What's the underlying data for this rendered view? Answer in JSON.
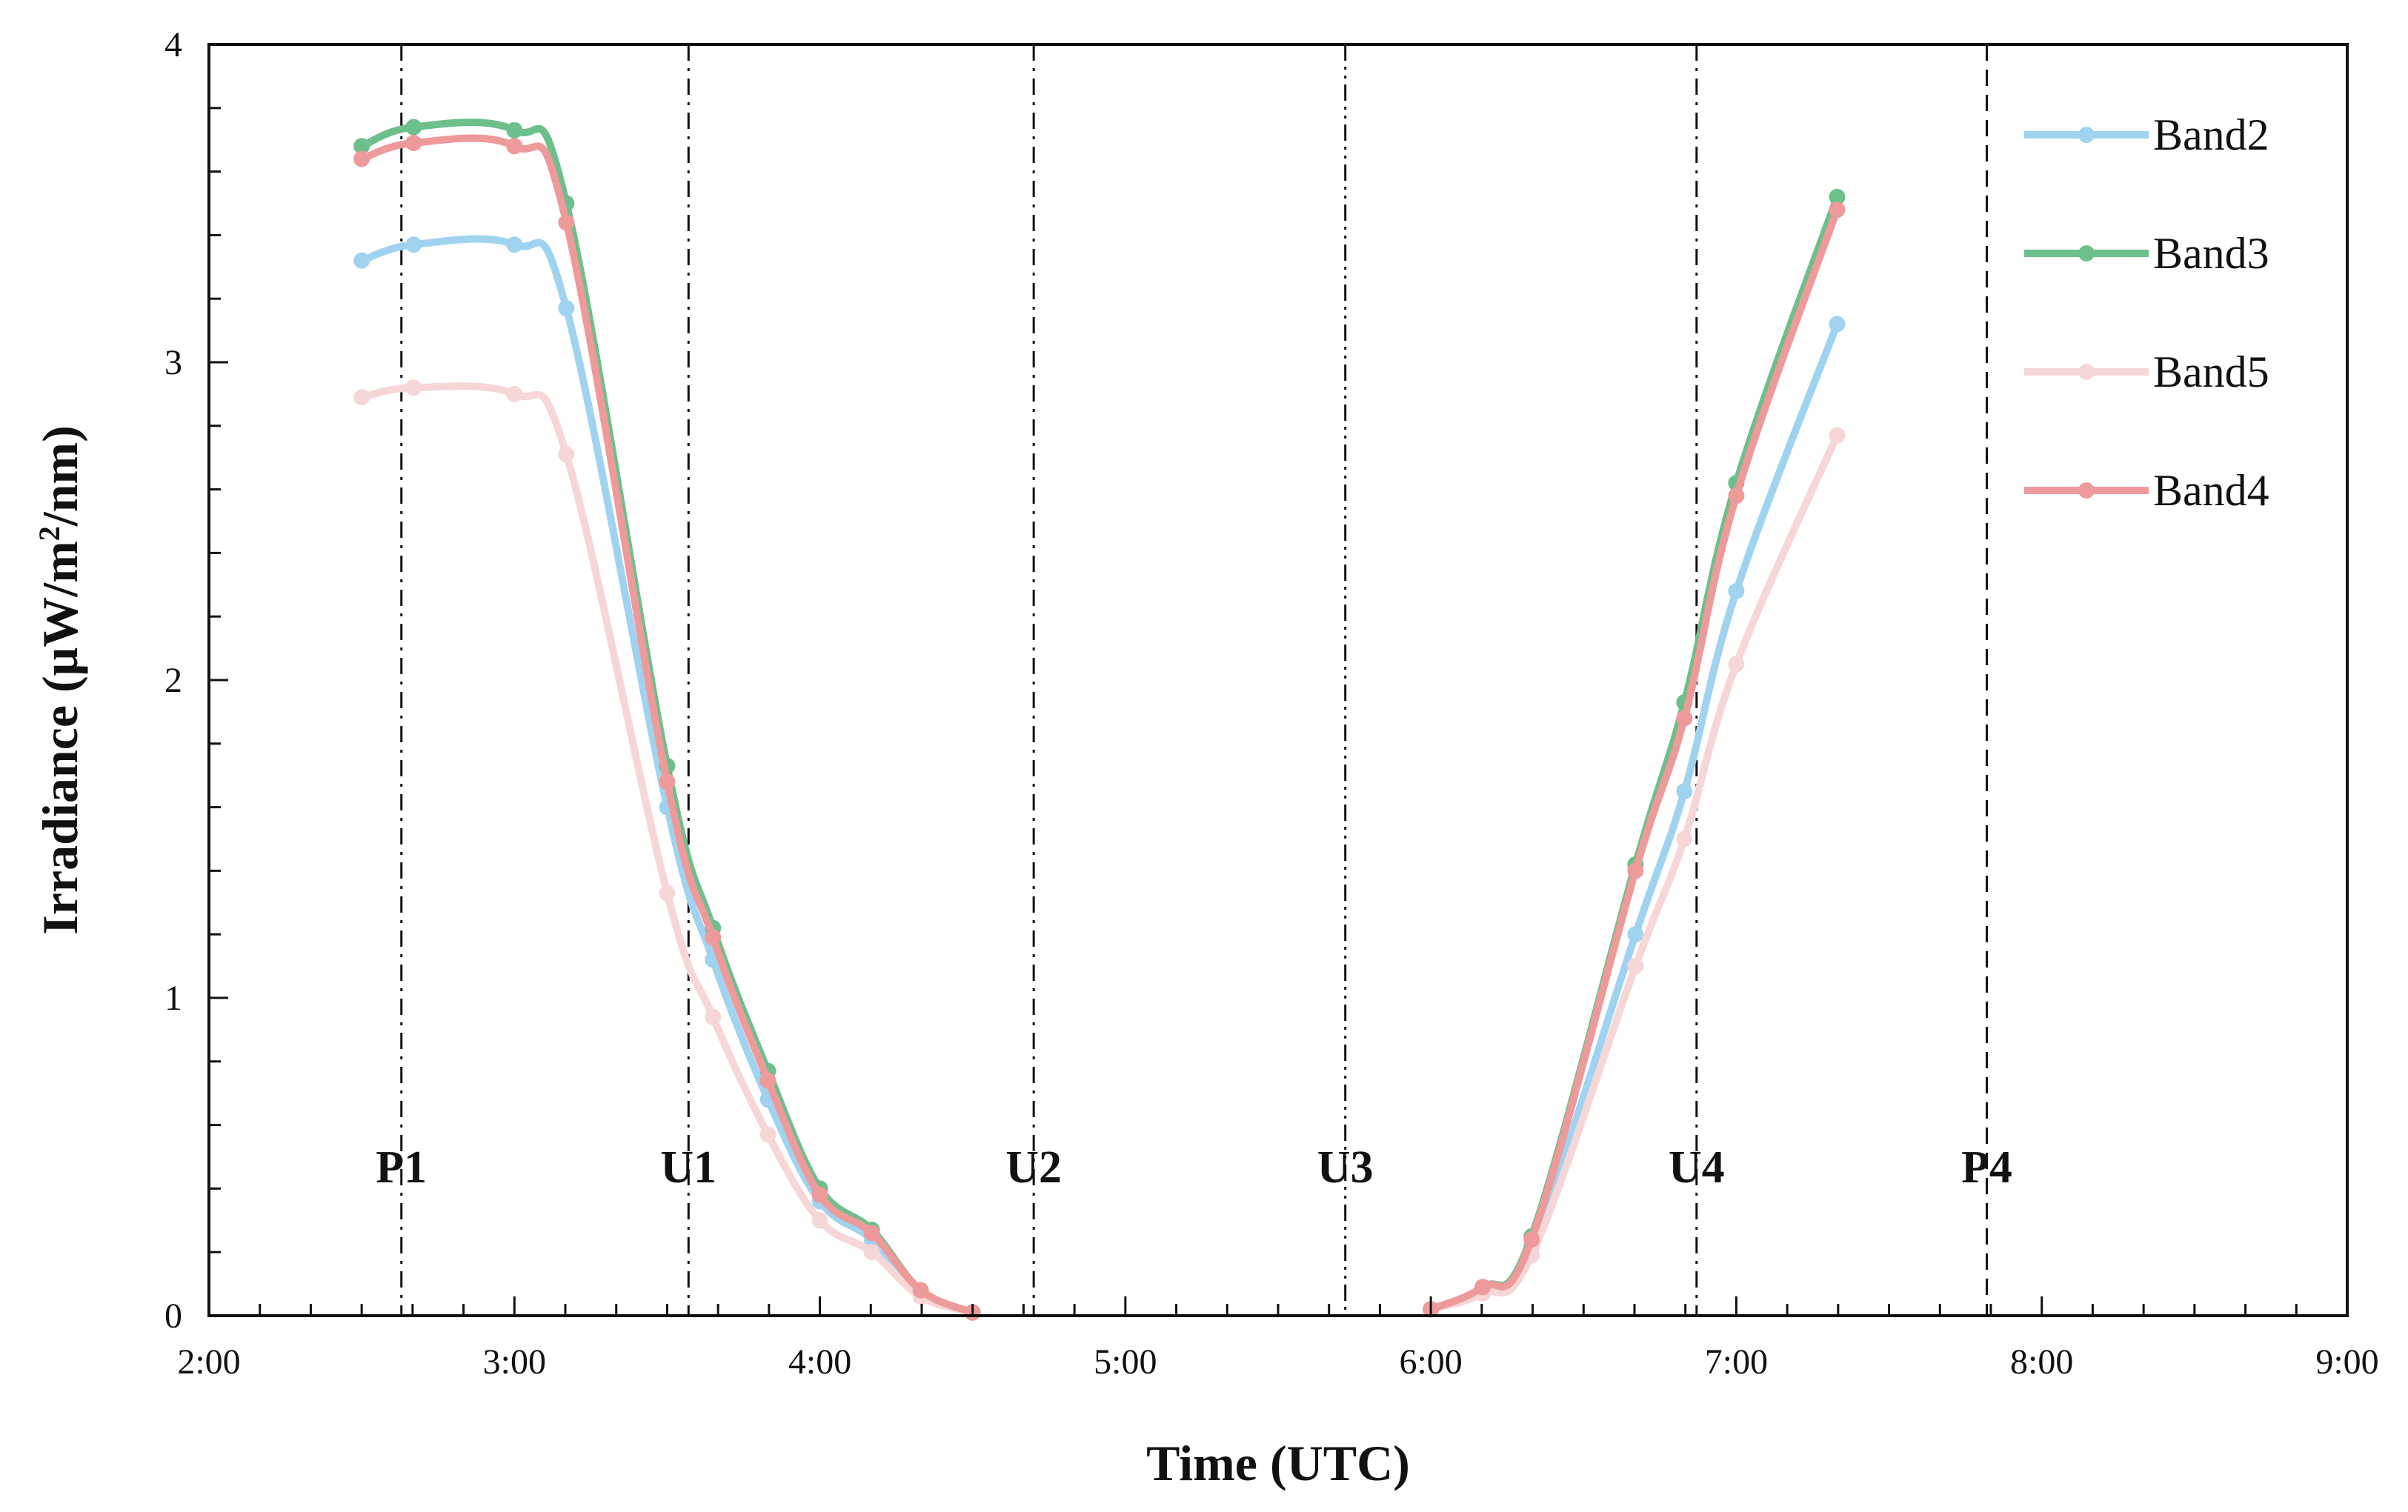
{
  "chart_data": {
    "type": "line",
    "title": "",
    "xlabel": "Time (UTC)",
    "ylabel_main": "Irradiance  (μW/m",
    "ylabel_sup": "2",
    "ylabel_end": "/nm)",
    "xlim": [
      2,
      9
    ],
    "ylim": [
      0,
      4
    ],
    "x_ticks": [
      2,
      3,
      4,
      5,
      6,
      7,
      8,
      9
    ],
    "x_tick_labels": [
      "2:00",
      "3:00",
      "4:00",
      "5:00",
      "6:00",
      "7:00",
      "8:00",
      "9:00"
    ],
    "y_ticks": [
      0,
      1,
      2,
      3,
      4
    ],
    "y_tick_labels": [
      "0",
      "1",
      "2",
      "3",
      "4"
    ],
    "legend_position": "top-right",
    "phase_lines": [
      {
        "label": "P1",
        "x": 2.63,
        "style": "dash-dot"
      },
      {
        "label": "U1",
        "x": 3.57,
        "style": "dash-dot"
      },
      {
        "label": "U2",
        "x": 4.7,
        "style": "dash-dot"
      },
      {
        "label": "U3",
        "x": 5.72,
        "style": "dash-dot-dot"
      },
      {
        "label": "U4",
        "x": 6.87,
        "style": "dash-dot"
      },
      {
        "label": "P4",
        "x": 7.82,
        "style": "dash"
      }
    ],
    "series": [
      {
        "name": "Band2",
        "color": "#9fd3f0",
        "segments": [
          [
            [
              2.5,
              3.32
            ],
            [
              2.67,
              3.37
            ],
            [
              3.0,
              3.37
            ],
            [
              3.17,
              3.17
            ],
            [
              3.5,
              1.6
            ],
            [
              3.65,
              1.12
            ],
            [
              3.83,
              0.68
            ],
            [
              4.0,
              0.36
            ],
            [
              4.17,
              0.24
            ],
            [
              4.33,
              0.07
            ],
            [
              4.5,
              0.01
            ]
          ],
          [
            [
              6.0,
              0.02
            ],
            [
              6.17,
              0.08
            ],
            [
              6.33,
              0.22
            ],
            [
              6.67,
              1.2
            ],
            [
              6.83,
              1.65
            ],
            [
              7.0,
              2.28
            ],
            [
              7.33,
              3.12
            ]
          ]
        ]
      },
      {
        "name": "Band3",
        "color": "#6dbf8b",
        "segments": [
          [
            [
              2.5,
              3.68
            ],
            [
              2.67,
              3.74
            ],
            [
              3.0,
              3.73
            ],
            [
              3.17,
              3.5
            ],
            [
              3.5,
              1.73
            ],
            [
              3.65,
              1.22
            ],
            [
              3.83,
              0.77
            ],
            [
              4.0,
              0.4
            ],
            [
              4.17,
              0.27
            ],
            [
              4.33,
              0.08
            ],
            [
              4.5,
              0.01
            ]
          ],
          [
            [
              6.0,
              0.02
            ],
            [
              6.17,
              0.09
            ],
            [
              6.33,
              0.25
            ],
            [
              6.67,
              1.42
            ],
            [
              6.83,
              1.93
            ],
            [
              7.0,
              2.62
            ],
            [
              7.33,
              3.52
            ]
          ]
        ]
      },
      {
        "name": "Band5",
        "color": "#f6d6d6",
        "segments": [
          [
            [
              2.5,
              2.89
            ],
            [
              2.67,
              2.92
            ],
            [
              3.0,
              2.9
            ],
            [
              3.17,
              2.71
            ],
            [
              3.5,
              1.33
            ],
            [
              3.65,
              0.94
            ],
            [
              3.83,
              0.57
            ],
            [
              4.0,
              0.3
            ],
            [
              4.17,
              0.2
            ],
            [
              4.33,
              0.06
            ],
            [
              4.5,
              0.01
            ]
          ],
          [
            [
              6.0,
              0.02
            ],
            [
              6.17,
              0.07
            ],
            [
              6.33,
              0.19
            ],
            [
              6.67,
              1.1
            ],
            [
              6.83,
              1.5
            ],
            [
              7.0,
              2.05
            ],
            [
              7.33,
              2.77
            ]
          ]
        ]
      },
      {
        "name": "Band4",
        "color": "#ee9a9a",
        "segments": [
          [
            [
              2.5,
              3.64
            ],
            [
              2.67,
              3.69
            ],
            [
              3.0,
              3.68
            ],
            [
              3.17,
              3.44
            ],
            [
              3.5,
              1.68
            ],
            [
              3.65,
              1.19
            ],
            [
              3.83,
              0.74
            ],
            [
              4.0,
              0.38
            ],
            [
              4.17,
              0.26
            ],
            [
              4.33,
              0.08
            ],
            [
              4.5,
              0.01
            ]
          ],
          [
            [
              6.0,
              0.02
            ],
            [
              6.17,
              0.09
            ],
            [
              6.33,
              0.24
            ],
            [
              6.67,
              1.4
            ],
            [
              6.83,
              1.88
            ],
            [
              7.0,
              2.58
            ],
            [
              7.33,
              3.48
            ]
          ]
        ]
      }
    ]
  }
}
